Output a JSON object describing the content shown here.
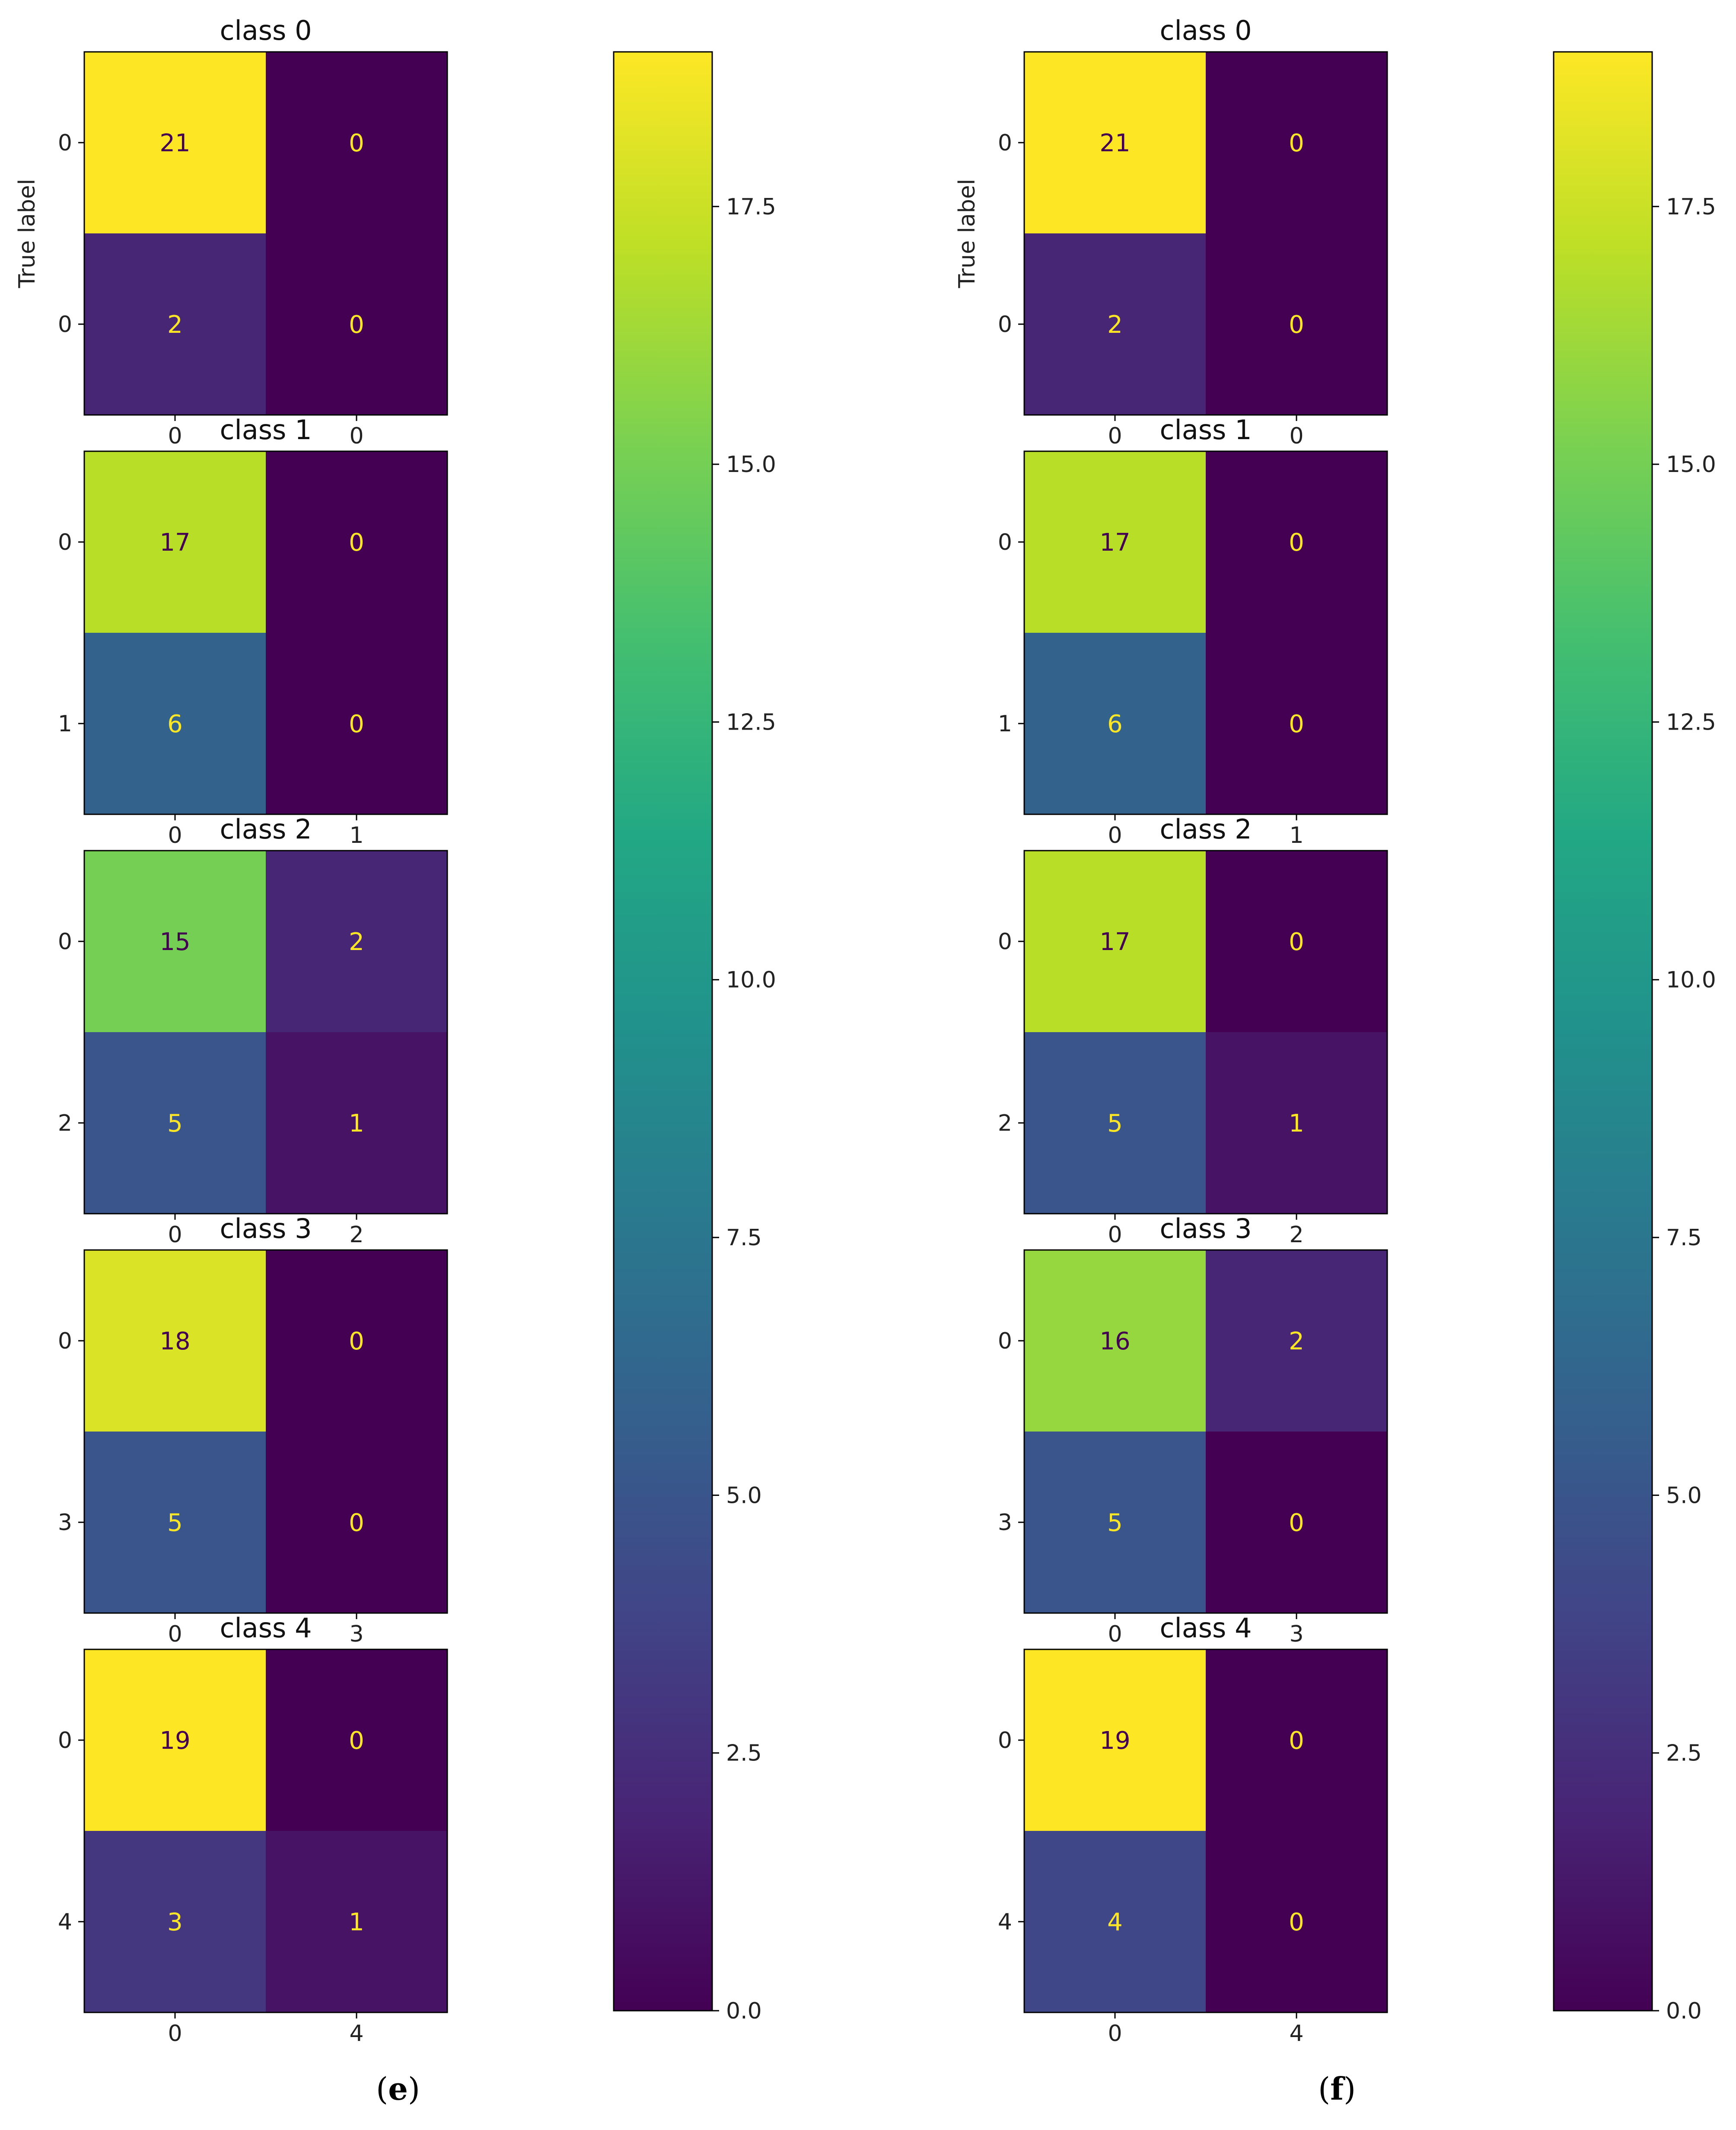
{
  "figure": {
    "panels": [
      {
        "label": "(",
        "letter": "e",
        "close": ")"
      },
      {
        "label": "(",
        "letter": "f",
        "close": ")"
      }
    ]
  },
  "chart_data": [
    {
      "type": "heatmap",
      "panel": "e",
      "colormap": "viridis",
      "ylabel": "True label",
      "colorbar": {
        "min": 0,
        "max": 19,
        "ticks": [
          "0.0",
          "2.5",
          "5.0",
          "7.5",
          "10.0",
          "12.5",
          "15.0",
          "17.5"
        ]
      },
      "matrices": [
        {
          "title": "class 0",
          "row_labels": [
            "0",
            "0"
          ],
          "col_labels": [
            "0",
            "0"
          ],
          "values": [
            [
              21,
              0
            ],
            [
              2,
              0
            ]
          ]
        },
        {
          "title": "class 1",
          "row_labels": [
            "0",
            "1"
          ],
          "col_labels": [
            "0",
            "1"
          ],
          "values": [
            [
              17,
              0
            ],
            [
              6,
              0
            ]
          ]
        },
        {
          "title": "class 2",
          "row_labels": [
            "0",
            "2"
          ],
          "col_labels": [
            "0",
            "2"
          ],
          "values": [
            [
              15,
              2
            ],
            [
              5,
              1
            ]
          ]
        },
        {
          "title": "class 3",
          "row_labels": [
            "0",
            "3"
          ],
          "col_labels": [
            "0",
            "3"
          ],
          "values": [
            [
              18,
              0
            ],
            [
              5,
              0
            ]
          ]
        },
        {
          "title": "class 4",
          "row_labels": [
            "0",
            "4"
          ],
          "col_labels": [
            "0",
            "4"
          ],
          "values": [
            [
              19,
              0
            ],
            [
              3,
              1
            ]
          ]
        }
      ]
    },
    {
      "type": "heatmap",
      "panel": "f",
      "colormap": "viridis",
      "ylabel": "True label",
      "colorbar": {
        "min": 0,
        "max": 19,
        "ticks": [
          "0.0",
          "2.5",
          "5.0",
          "7.5",
          "10.0",
          "12.5",
          "15.0",
          "17.5"
        ]
      },
      "matrices": [
        {
          "title": "class 0",
          "row_labels": [
            "0",
            "0"
          ],
          "col_labels": [
            "0",
            "0"
          ],
          "values": [
            [
              21,
              0
            ],
            [
              2,
              0
            ]
          ]
        },
        {
          "title": "class 1",
          "row_labels": [
            "0",
            "1"
          ],
          "col_labels": [
            "0",
            "1"
          ],
          "values": [
            [
              17,
              0
            ],
            [
              6,
              0
            ]
          ]
        },
        {
          "title": "class 2",
          "row_labels": [
            "0",
            "2"
          ],
          "col_labels": [
            "0",
            "2"
          ],
          "values": [
            [
              17,
              0
            ],
            [
              5,
              1
            ]
          ]
        },
        {
          "title": "class 3",
          "row_labels": [
            "0",
            "3"
          ],
          "col_labels": [
            "0",
            "3"
          ],
          "values": [
            [
              16,
              2
            ],
            [
              5,
              0
            ]
          ]
        },
        {
          "title": "class 4",
          "row_labels": [
            "0",
            "4"
          ],
          "col_labels": [
            "0",
            "4"
          ],
          "values": [
            [
              19,
              0
            ],
            [
              4,
              0
            ]
          ]
        }
      ]
    }
  ]
}
